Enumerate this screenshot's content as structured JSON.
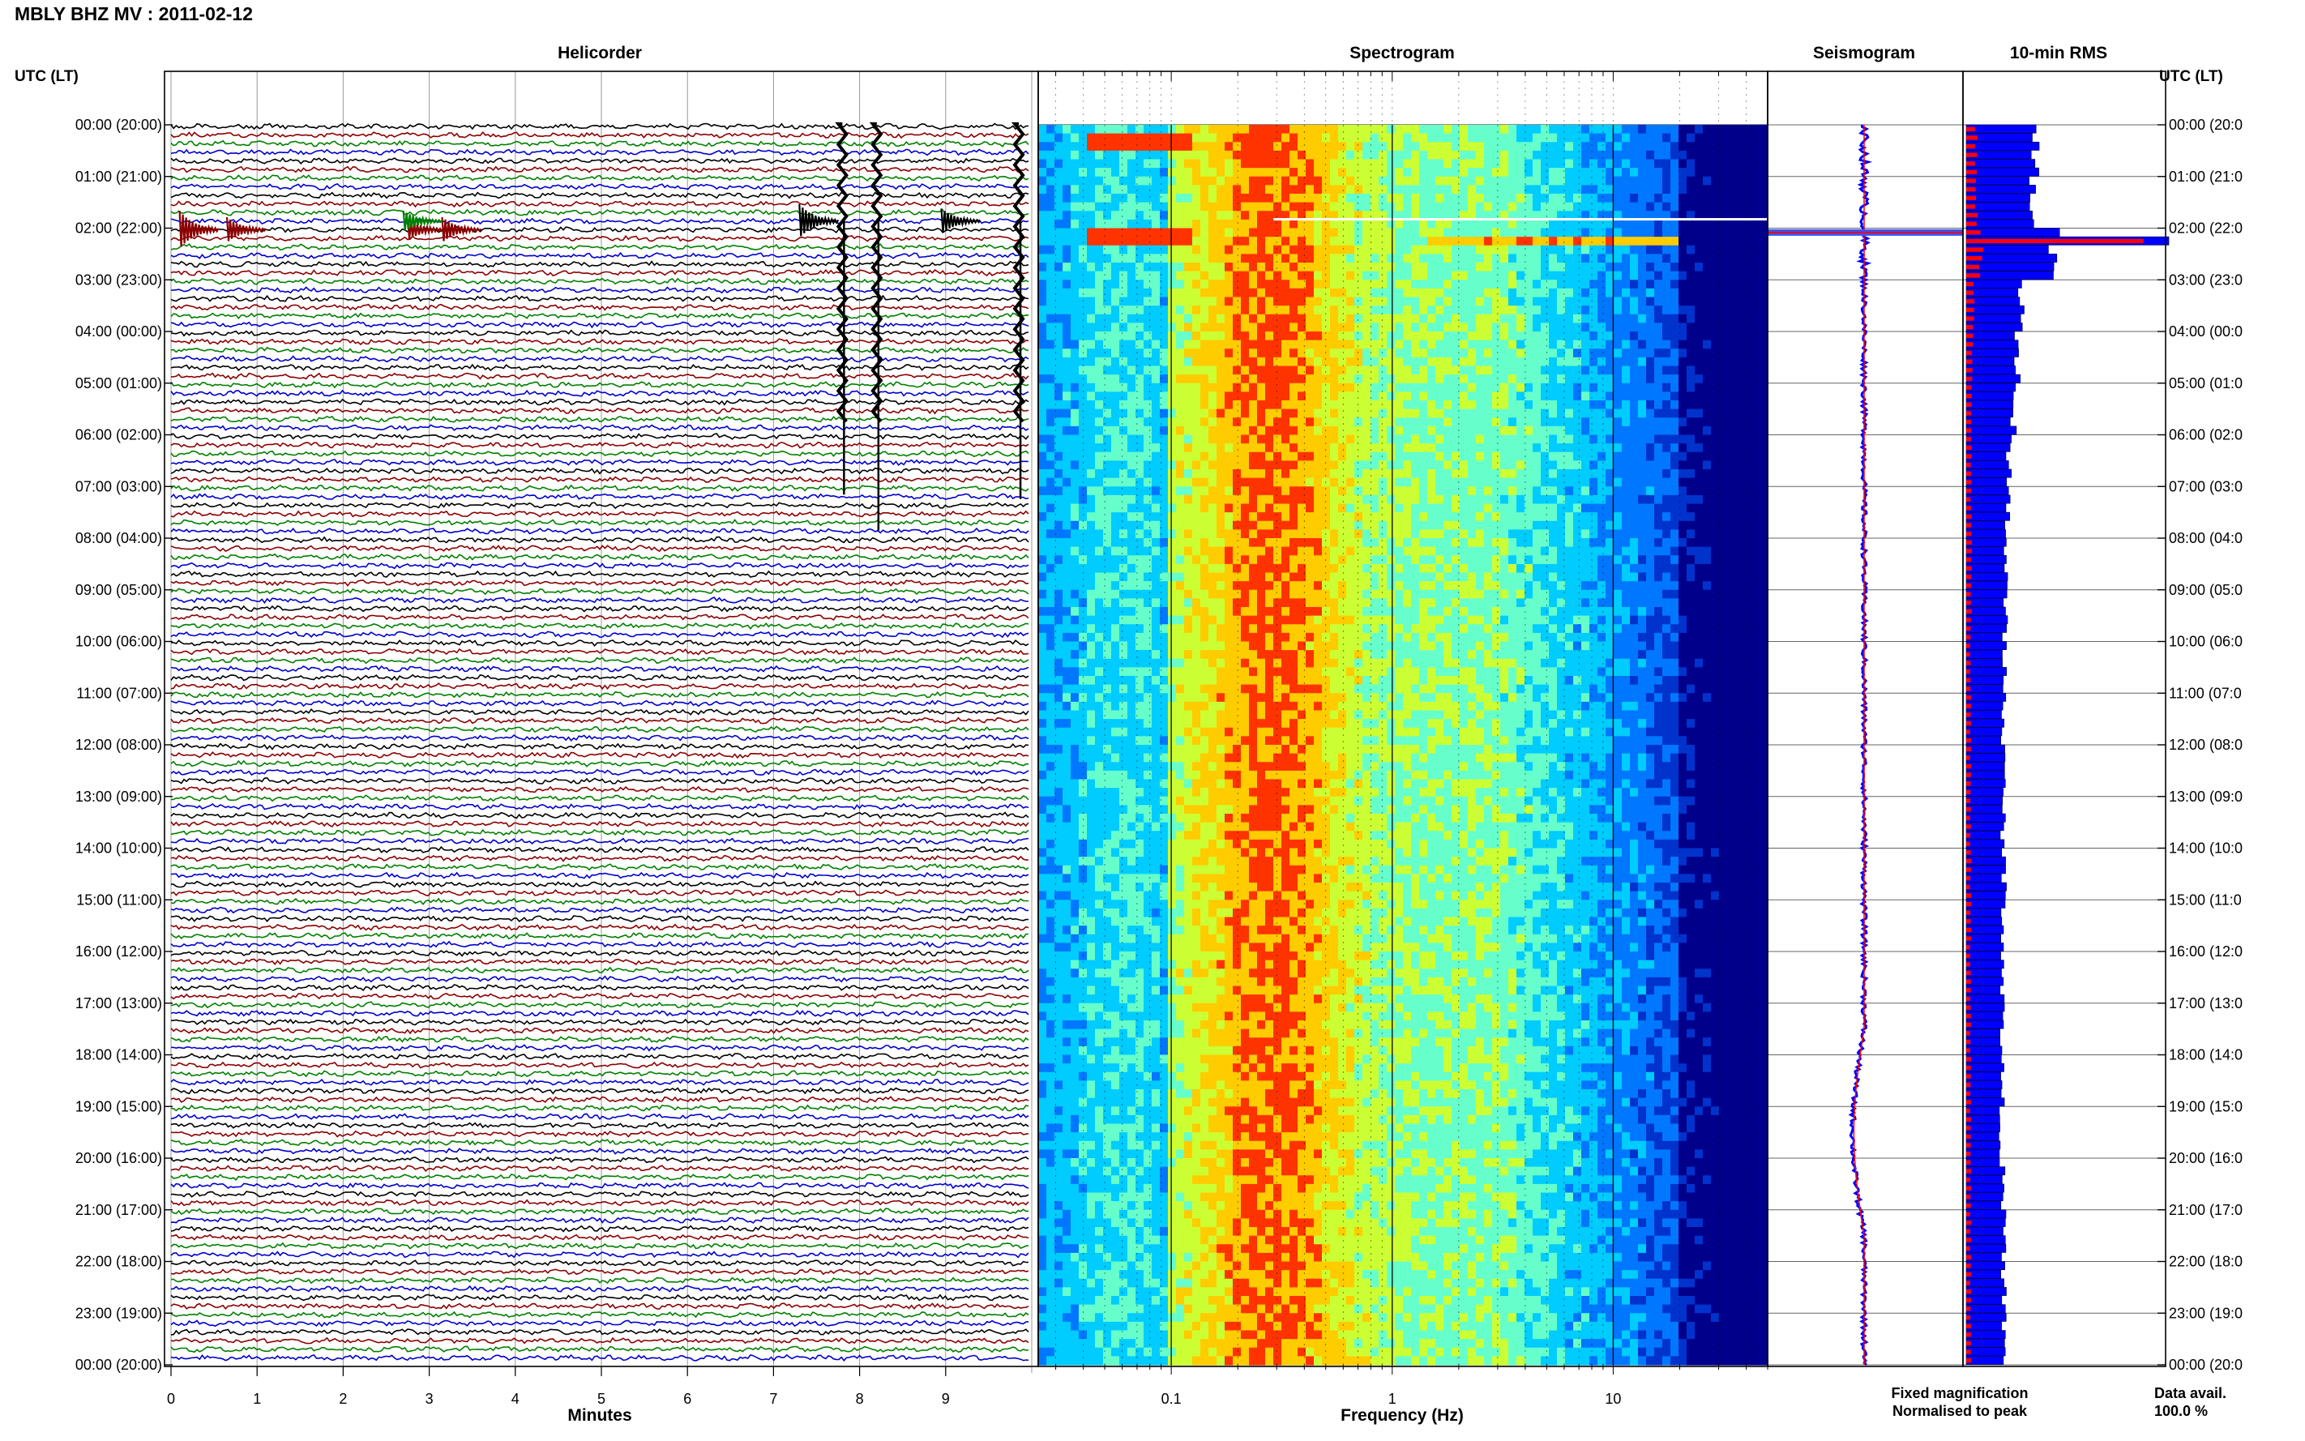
{
  "header": {
    "station": "MBLY BHZ MV",
    "date": "2011-02-12",
    "title_text": "MBLY BHZ MV : 2011-02-12",
    "tz_label_left": "UTC (LT)",
    "tz_label_right": "UTC (LT)"
  },
  "panels": {
    "helicorder": "Helicorder",
    "spectrogram": "Spectrogram",
    "seismogram": "Seismogram",
    "rms": "10-min RMS"
  },
  "time_labels": [
    "00:00 (20:00)",
    "01:00 (21:00)",
    "02:00 (22:00)",
    "03:00 (23:00)",
    "04:00 (00:00)",
    "05:00 (01:00)",
    "06:00 (02:00)",
    "07:00 (03:00)",
    "08:00 (04:00)",
    "09:00 (05:00)",
    "10:00 (06:00)",
    "11:00 (07:00)",
    "12:00 (08:00)",
    "13:00 (09:00)",
    "14:00 (10:00)",
    "15:00 (11:00)",
    "16:00 (12:00)",
    "17:00 (13:00)",
    "18:00 (14:00)",
    "19:00 (15:00)",
    "20:00 (16:00)",
    "21:00 (17:00)",
    "22:00 (18:00)",
    "23:00 (19:00)",
    "00:00 (20:00)"
  ],
  "time_labels_right": [
    "00:00 (20:0",
    "01:00 (21:0",
    "02:00 (22:0",
    "03:00 (23:0",
    "04:00 (00:0",
    "05:00 (01:0",
    "06:00 (02:0",
    "07:00 (03:0",
    "08:00 (04:0",
    "09:00 (05:0",
    "10:00 (06:0",
    "11:00 (07:0",
    "12:00 (08:0",
    "13:00 (09:0",
    "14:00 (10:0",
    "15:00 (11:0",
    "16:00 (12:0",
    "17:00 (13:0",
    "18:00 (14:0",
    "19:00 (15:0",
    "20:00 (16:0",
    "21:00 (17:0",
    "22:00 (18:0",
    "23:00 (19:0",
    "00:00 (20:0"
  ],
  "legend": {
    "fixed": "Fixed magnification",
    "normalised": "Normalised to peak",
    "fixed_color": "#0000ff",
    "normalised_color": "#ff0000"
  },
  "data_avail": {
    "label": "Data avail.",
    "value": "100.0 %"
  },
  "colors": {
    "trace_cycle": [
      "#000000",
      "#8b0000",
      "#008000",
      "#0000cd"
    ],
    "rms_fixed": "#0000ff",
    "rms_normalised": "#ff0000"
  },
  "chart_data": [
    {
      "type": "line",
      "panel": "helicorder",
      "title": "Helicorder",
      "xlabel": "Minutes",
      "x_ticks": [
        "0",
        "1",
        "2",
        "3",
        "4",
        "5",
        "6",
        "7",
        "8",
        "9"
      ],
      "xlim": [
        0,
        10
      ],
      "rows": 144,
      "row_minutes": 10,
      "events": [
        {
          "row": 12,
          "minute": 0.1,
          "amp": 0.9,
          "color": "#8b0000"
        },
        {
          "row": 12,
          "minute": 0.65,
          "amp": 0.6,
          "color": "#8b0000"
        },
        {
          "row": 12,
          "minute": 2.75,
          "amp": 0.5,
          "color": "#8b0000"
        },
        {
          "row": 12,
          "minute": 3.15,
          "amp": 0.6,
          "color": "#8b0000"
        },
        {
          "row": 11,
          "minute": 2.7,
          "amp": 0.5,
          "color": "#008000"
        },
        {
          "row": 11,
          "minute": 7.3,
          "amp": 0.8,
          "color": "#000000"
        },
        {
          "row": 11,
          "minute": 7.8,
          "amp": 3.0,
          "color": "#000000"
        },
        {
          "row": 11,
          "minute": 8.2,
          "amp": 3.0,
          "color": "#000000"
        },
        {
          "row": 11,
          "minute": 8.95,
          "amp": 0.6,
          "color": "#000000"
        },
        {
          "row": 11,
          "minute": 9.85,
          "amp": 3.0,
          "color": "#000000"
        }
      ]
    },
    {
      "type": "heatmap",
      "panel": "spectrogram",
      "title": "Spectrogram",
      "xlabel": "Frequency (Hz)",
      "x_scale": "log",
      "xlim": [
        0.025,
        50
      ],
      "x_ticks": [
        "0.1",
        "1",
        "10"
      ],
      "colormap": [
        "#00008b",
        "#0033cc",
        "#0077ff",
        "#00ccff",
        "#66ffcc",
        "#ccff33",
        "#ffcc00",
        "#ff3300"
      ],
      "peak_band_hz": [
        0.2,
        0.4
      ],
      "event_rows_hours": [
        0.3,
        2.0
      ]
    },
    {
      "type": "line",
      "panel": "seismogram",
      "title": "Seismogram",
      "series": [
        {
          "name": "Fixed magnification",
          "color": "#0000ff"
        },
        {
          "name": "Normalised to peak",
          "color": "#ff0000"
        }
      ],
      "event_hour": 2.1
    },
    {
      "type": "bar",
      "panel": "rms",
      "title": "10-min RMS",
      "orientation": "horizontal",
      "bins_per_hour": 6,
      "hours": 24,
      "hourly_fixed": [
        1.35,
        1.3,
        1.75,
        1.1,
        1.0,
        0.92,
        0.85,
        0.82,
        0.78,
        0.76,
        0.75,
        0.74,
        0.73,
        0.73,
        0.74,
        0.74,
        0.72,
        0.71,
        0.7,
        0.7,
        0.71,
        0.73,
        0.74,
        0.74
      ],
      "hourly_normalised": [
        0.2,
        0.2,
        0.3,
        0.15,
        0.12,
        0.1,
        0.1,
        0.1,
        0.1,
        0.1,
        0.09,
        0.09,
        0.09,
        0.09,
        0.09,
        0.09,
        0.09,
        0.09,
        0.09,
        0.09,
        0.09,
        0.09,
        0.09,
        0.09
      ],
      "peak_bin": {
        "hour": 2,
        "bin": 1,
        "fixed": 4.0,
        "normalised": 3.5
      }
    }
  ]
}
